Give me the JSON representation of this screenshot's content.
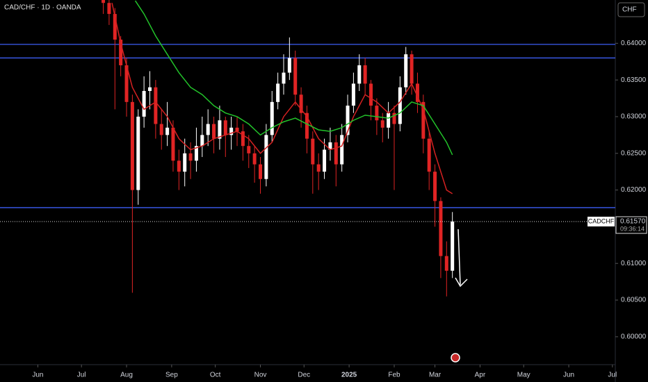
{
  "chart_data": {
    "type": "candlestick",
    "title": "CAD/CHF · 1D · OANDA",
    "currency": "CHF",
    "symbol": "CADCHF",
    "last_price": {
      "value": 0.6157,
      "label": "0.61570"
    },
    "countdown": "09:36:14",
    "up_color": "#ffffff",
    "down_color": "#e02424",
    "x": [
      45,
      49,
      53,
      57,
      61,
      65,
      69,
      73,
      77,
      81,
      85,
      89,
      93,
      97,
      101,
      105,
      109,
      113,
      117,
      121,
      125,
      129,
      133,
      137,
      141,
      145,
      149,
      153,
      157,
      161,
      165,
      169,
      173,
      177,
      181,
      185,
      189,
      193,
      197,
      201,
      205,
      209,
      213,
      217,
      221,
      225,
      229,
      233,
      237,
      241,
      245,
      249,
      253,
      257,
      261,
      265,
      269,
      273,
      277,
      281,
      285
    ],
    "open": [
      0.647,
      0.6455,
      0.644,
      0.6405,
      0.637,
      0.632,
      0.62,
      0.63,
      0.6335,
      0.634,
      0.629,
      0.6275,
      0.6285,
      0.624,
      0.6225,
      0.625,
      0.624,
      0.626,
      0.6275,
      0.629,
      0.627,
      0.6295,
      0.6275,
      0.6285,
      0.628,
      0.626,
      0.625,
      0.6235,
      0.6215,
      0.6275,
      0.632,
      0.6345,
      0.636,
      0.638,
      0.633,
      0.6305,
      0.627,
      0.6235,
      0.6225,
      0.6255,
      0.6265,
      0.6235,
      0.6275,
      0.6315,
      0.6345,
      0.637,
      0.6345,
      0.6315,
      0.6295,
      0.6285,
      0.6305,
      0.629,
      0.634,
      0.6385,
      0.6345,
      0.632,
      0.627,
      0.6225,
      0.6185,
      0.611,
      0.609
    ],
    "high": [
      0.6478,
      0.6462,
      0.6448,
      0.641,
      0.638,
      0.633,
      0.631,
      0.6355,
      0.6362,
      0.635,
      0.631,
      0.632,
      0.6295,
      0.6255,
      0.627,
      0.6265,
      0.6285,
      0.63,
      0.631,
      0.63,
      0.6315,
      0.63,
      0.63,
      0.63,
      0.629,
      0.6275,
      0.626,
      0.6245,
      0.629,
      0.6335,
      0.636,
      0.6385,
      0.6408,
      0.639,
      0.634,
      0.6315,
      0.628,
      0.625,
      0.627,
      0.6285,
      0.6275,
      0.629,
      0.633,
      0.636,
      0.6385,
      0.638,
      0.635,
      0.6325,
      0.6305,
      0.632,
      0.6315,
      0.6355,
      0.6395,
      0.639,
      0.636,
      0.633,
      0.628,
      0.6235,
      0.619,
      0.613,
      0.617
    ],
    "low": [
      0.644,
      0.6425,
      0.631,
      0.6355,
      0.63,
      0.606,
      0.618,
      0.6285,
      0.631,
      0.627,
      0.6255,
      0.626,
      0.6225,
      0.62,
      0.6205,
      0.6215,
      0.6225,
      0.6245,
      0.626,
      0.625,
      0.6255,
      0.6245,
      0.6255,
      0.626,
      0.624,
      0.623,
      0.621,
      0.6195,
      0.6205,
      0.6265,
      0.631,
      0.633,
      0.635,
      0.6315,
      0.6285,
      0.625,
      0.6195,
      0.62,
      0.6215,
      0.624,
      0.6205,
      0.6225,
      0.6265,
      0.6305,
      0.6335,
      0.633,
      0.6295,
      0.6275,
      0.6265,
      0.627,
      0.62,
      0.628,
      0.633,
      0.633,
      0.6305,
      0.625,
      0.62,
      0.615,
      0.608,
      0.6055,
      0.608
    ],
    "close": [
      0.6455,
      0.644,
      0.6405,
      0.637,
      0.632,
      0.62,
      0.63,
      0.6335,
      0.634,
      0.629,
      0.6275,
      0.6285,
      0.624,
      0.6225,
      0.625,
      0.624,
      0.626,
      0.6275,
      0.629,
      0.627,
      0.6295,
      0.6275,
      0.6285,
      0.628,
      0.626,
      0.625,
      0.6235,
      0.6215,
      0.6275,
      0.632,
      0.6345,
      0.636,
      0.638,
      0.633,
      0.6305,
      0.627,
      0.6235,
      0.6225,
      0.6255,
      0.6265,
      0.6235,
      0.6275,
      0.6315,
      0.6345,
      0.637,
      0.6345,
      0.6315,
      0.6295,
      0.6285,
      0.6305,
      0.629,
      0.634,
      0.6385,
      0.6345,
      0.632,
      0.627,
      0.6225,
      0.6185,
      0.611,
      0.609,
      0.6157
    ],
    "series": [
      {
        "color": "#d42121",
        "x": [
          51,
          57,
          65,
          73,
          81,
          89,
          97,
          105,
          113,
          121,
          129,
          137,
          145,
          153,
          161,
          169,
          177,
          185,
          193,
          201,
          209,
          217,
          225,
          233,
          241,
          249,
          257,
          265,
          273,
          281,
          285
        ],
        "values": [
          0.6455,
          0.64,
          0.634,
          0.631,
          0.632,
          0.63,
          0.627,
          0.6255,
          0.626,
          0.627,
          0.6275,
          0.628,
          0.627,
          0.625,
          0.6265,
          0.63,
          0.632,
          0.63,
          0.627,
          0.6255,
          0.626,
          0.63,
          0.633,
          0.632,
          0.6305,
          0.632,
          0.6345,
          0.631,
          0.625,
          0.62,
          0.6195
        ]
      },
      {
        "color": "#22c32a",
        "x": [
          67,
          73,
          81,
          89,
          97,
          105,
          113,
          121,
          129,
          137,
          145,
          153,
          161,
          169,
          177,
          185,
          193,
          201,
          209,
          217,
          225,
          233,
          241,
          249,
          257,
          265,
          273,
          281,
          285
        ],
        "values": [
          0.6458,
          0.644,
          0.641,
          0.6385,
          0.636,
          0.634,
          0.633,
          0.6315,
          0.6305,
          0.63,
          0.629,
          0.6275,
          0.6285,
          0.6293,
          0.6298,
          0.629,
          0.6282,
          0.628,
          0.6285,
          0.6295,
          0.6302,
          0.63,
          0.6298,
          0.6305,
          0.632,
          0.6315,
          0.629,
          0.6265,
          0.6248
        ]
      }
    ],
    "levels": [
      0.63985,
      0.638,
      0.6176
    ],
    "level_color": "#3c5ef5",
    "xlim": [
      -26,
      397
    ],
    "xticks": [
      {
        "value": 0,
        "label": "Jun"
      },
      {
        "value": 30,
        "label": "Jul"
      },
      {
        "value": 61,
        "label": "Aug"
      },
      {
        "value": 92,
        "label": "Sep"
      },
      {
        "value": 122,
        "label": "Oct"
      },
      {
        "value": 153,
        "label": "Nov"
      },
      {
        "value": 183,
        "label": "Dec"
      },
      {
        "value": 214,
        "label": "2025"
      },
      {
        "value": 245,
        "label": "Feb"
      },
      {
        "value": 273,
        "label": "Mar"
      },
      {
        "value": 304,
        "label": "Apr"
      },
      {
        "value": 334,
        "label": "May"
      },
      {
        "value": 365,
        "label": "Jun"
      },
      {
        "value": 395,
        "label": "Jul"
      }
    ],
    "ylim": [
      0.5962,
      0.6459
    ],
    "yticks": [
      {
        "value": 0.6,
        "label": "0.60000"
      },
      {
        "value": 0.605,
        "label": "0.60500"
      },
      {
        "value": 0.61,
        "label": "0.61000"
      },
      {
        "value": 0.615,
        "label": "0.61500"
      },
      {
        "value": 0.62,
        "label": "0.62000"
      },
      {
        "value": 0.625,
        "label": "0.62500"
      },
      {
        "value": 0.63,
        "label": "0.63000"
      },
      {
        "value": 0.635,
        "label": "0.63500"
      },
      {
        "value": 0.64,
        "label": "0.64000"
      }
    ],
    "grid": false
  }
}
